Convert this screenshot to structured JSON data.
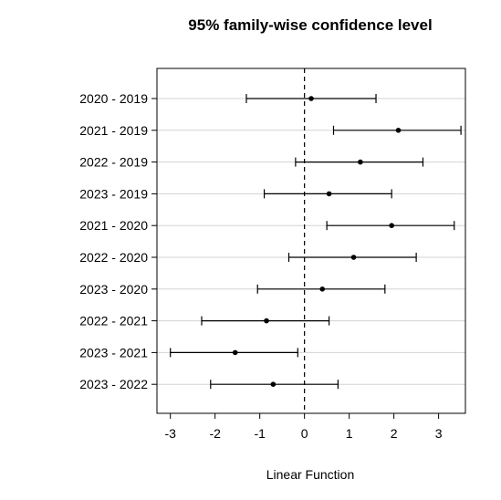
{
  "chart_data": {
    "type": "scatter",
    "title": "95% family-wise confidence level",
    "xlabel": "Linear Function",
    "ylabel": "",
    "xlim": [
      -3.3,
      3.6
    ],
    "xticks": [
      -3,
      -2,
      -1,
      0,
      1,
      2,
      3
    ],
    "reference_line": 0,
    "grid": "horizontal",
    "comparisons": [
      {
        "label": "2020 - 2019",
        "estimate": 0.15,
        "lower": -1.3,
        "upper": 1.6
      },
      {
        "label": "2021 - 2019",
        "estimate": 2.1,
        "lower": 0.65,
        "upper": 3.5
      },
      {
        "label": "2022 - 2019",
        "estimate": 1.25,
        "lower": -0.2,
        "upper": 2.65
      },
      {
        "label": "2023 - 2019",
        "estimate": 0.55,
        "lower": -0.9,
        "upper": 1.95
      },
      {
        "label": "2021 - 2020",
        "estimate": 1.95,
        "lower": 0.5,
        "upper": 3.35
      },
      {
        "label": "2022 - 2020",
        "estimate": 1.1,
        "lower": -0.35,
        "upper": 2.5
      },
      {
        "label": "2023 - 2020",
        "estimate": 0.4,
        "lower": -1.05,
        "upper": 1.8
      },
      {
        "label": "2022 - 2021",
        "estimate": -0.85,
        "lower": -2.3,
        "upper": 0.55
      },
      {
        "label": "2023 - 2021",
        "estimate": -1.55,
        "lower": -3.0,
        "upper": -0.15
      },
      {
        "label": "2023 - 2022",
        "estimate": -0.7,
        "lower": -2.1,
        "upper": 0.75
      }
    ]
  }
}
